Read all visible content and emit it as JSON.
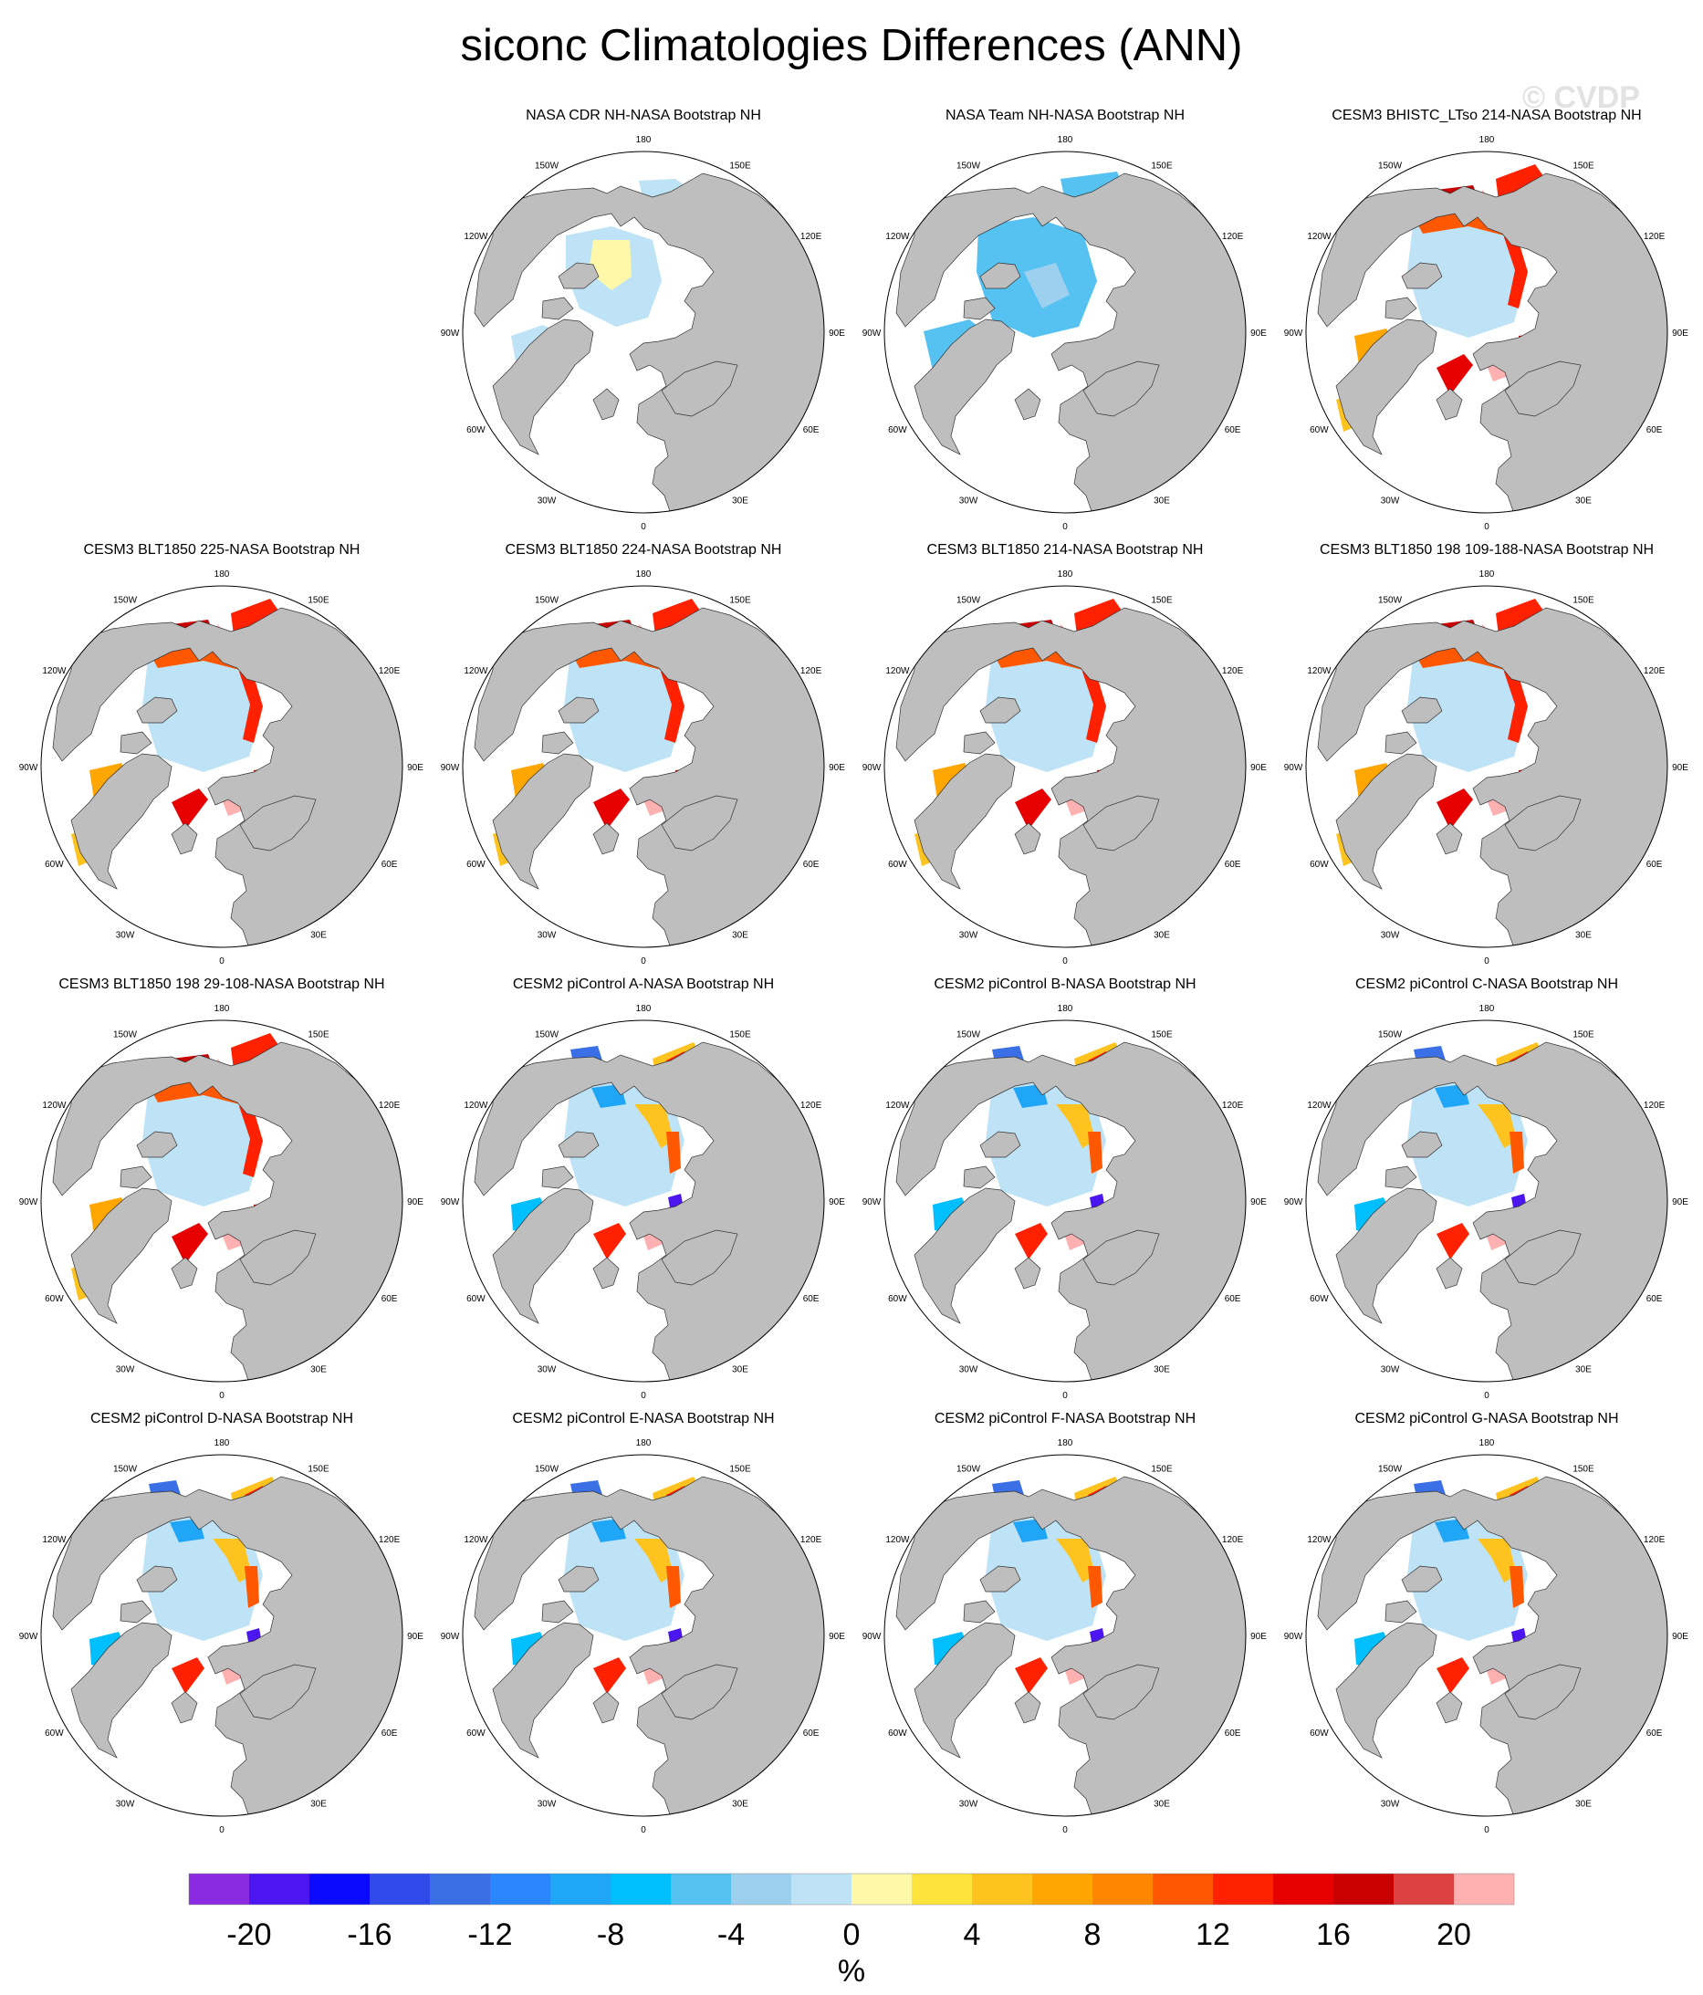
{
  "title": "siconc Climatologies Differences (ANN)",
  "watermark": "© CVDP",
  "lon_labels": {
    "0": "0",
    "30E": "30E",
    "60E": "60E",
    "90E": "90E",
    "120E": "120E",
    "150E": "150E",
    "180": "180",
    "150W": "150W",
    "120W": "120W",
    "90W": "90W",
    "60W": "60W",
    "30W": "30W"
  },
  "panels": [
    {
      "title": "NASA CDR NH-NASA Bootstrap NH",
      "pattern": "cdr"
    },
    {
      "title": "NASA Team NH-NASA Bootstrap NH",
      "pattern": "team"
    },
    {
      "title": "CESM3 BHISTC_LTso 214-NASA Bootstrap NH",
      "pattern": "cesm3"
    },
    {
      "title": "CESM3 BLT1850 225-NASA Bootstrap NH",
      "pattern": "cesm3"
    },
    {
      "title": "CESM3 BLT1850 224-NASA Bootstrap NH",
      "pattern": "cesm3"
    },
    {
      "title": "CESM3 BLT1850 214-NASA Bootstrap NH",
      "pattern": "cesm3"
    },
    {
      "title": "CESM3 BLT1850 198 109-188-NASA Bootstrap NH",
      "pattern": "cesm3"
    },
    {
      "title": "CESM3 BLT1850 198 29-108-NASA Bootstrap NH",
      "pattern": "cesm3"
    },
    {
      "title": "CESM2 piControl A-NASA Bootstrap NH",
      "pattern": "cesm2"
    },
    {
      "title": "CESM2 piControl B-NASA Bootstrap NH",
      "pattern": "cesm2"
    },
    {
      "title": "CESM2 piControl C-NASA Bootstrap NH",
      "pattern": "cesm2"
    },
    {
      "title": "CESM2 piControl D-NASA Bootstrap NH",
      "pattern": "cesm2"
    },
    {
      "title": "CESM2 piControl E-NASA Bootstrap NH",
      "pattern": "cesm2"
    },
    {
      "title": "CESM2 piControl F-NASA Bootstrap NH",
      "pattern": "cesm2"
    },
    {
      "title": "CESM2 piControl G-NASA Bootstrap NH",
      "pattern": "cesm2"
    }
  ],
  "colorbar": {
    "unit": "%",
    "tick_labels": [
      "-20",
      "-16",
      "-12",
      "-8",
      "-4",
      "0",
      "4",
      "8",
      "12",
      "16",
      "20"
    ],
    "tick_values": [
      -20,
      -16,
      -12,
      -8,
      -4,
      0,
      4,
      8,
      12,
      16,
      20
    ],
    "min": -22,
    "max": 22,
    "step": 2,
    "colors": [
      "#8a2be2",
      "#4b16f0",
      "#0a0aff",
      "#2f4ae8",
      "#3a6fe6",
      "#2a86fb",
      "#20a6f7",
      "#00bfff",
      "#55c2f2",
      "#9dd0ee",
      "#bfe3f6",
      "#fff8a8",
      "#ffe33d",
      "#ffc31f",
      "#ffa600",
      "#ff8700",
      "#ff5800",
      "#ff2100",
      "#e60000",
      "#c80000",
      "#dc4040",
      "#ffb0b0"
    ]
  }
}
